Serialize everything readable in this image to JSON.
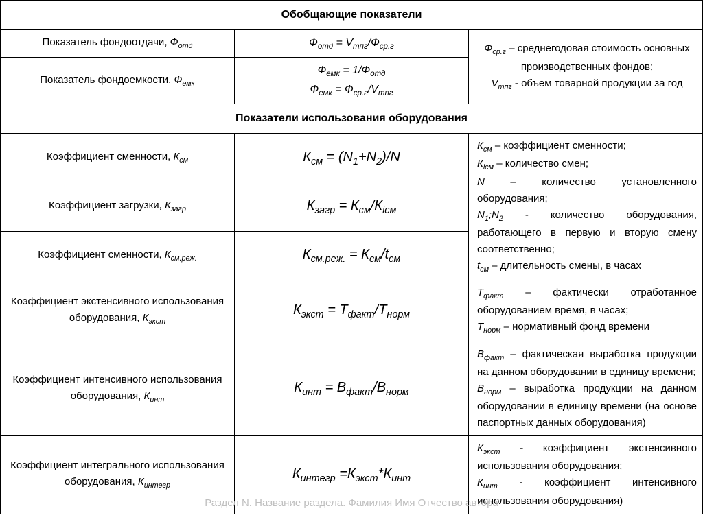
{
  "headers": {
    "h1": "Обобщающие показатели",
    "h2": "Показатели использования оборудования"
  },
  "section1": {
    "row1_name": "Показатель фондоотдачи, <span class='ital'>Ф<sub>отд</sub></span>",
    "row1_formula": "Ф<sub>отд</sub> = V<sub>тпг</sub>/Ф<sub>ср.г</sub>",
    "row2_name": "Показатель фондоемкости, <span class='ital'>Ф<sub>емк</sub></span>",
    "row2_formula": "Ф<sub>емк</sub> = 1/Ф<sub>отд</sub><br>Ф<sub>емк</sub> = Ф<sub>ср.г</sub>/V<sub>тпг</sub>",
    "desc": "<span class='ital'>Ф<sub>ср.г</sub></span> – среднегодовая стоимость основных производственных фондов;<br><span class='ital'>V<sub>тпг</sub></span> - объем товарной продукции за год"
  },
  "section2": {
    "r1_name": "Коэффициент сменности, <span class='ital'>К<sub>см</sub></span>",
    "r1_formula": "К<sub>см</sub> = (N<sub>1</sub>+N<sub>2</sub>)/N",
    "r2_name": "Коэффициент загрузки, <span class='ital'>К<sub>загр</sub></span>",
    "r2_formula": "К<sub>загр</sub> = К<sub>см</sub>/К<sub>iсм</sub>",
    "r3_name": "Коэффициент сменности, <span class='ital'>К<sub>см.реж.</sub></span>",
    "r3_formula": "К<sub>см.реж.</sub> = К<sub>см</sub>/t<sub>см</sub>",
    "desc123": "<span class='ital'>К<sub>см</sub></span> – коэффициент сменности;<br><span class='ital'>К<sub>iсм</sub></span> – количество смен;<br><span class='ital'>N</span> – количество установленного оборудования;<br><span class='ital'>N<sub>1</sub>;N<sub>2</sub></span> - количество оборудования, работающего в первую и вторую смену соответственно;<br><span class='ital'>t<sub>см</sub></span> – длительность смены, в часах",
    "r4_name": "Коэффициент экстенсивного использования оборудования, <span class='ital'>К<sub>экст</sub></span>",
    "r4_formula": "К<sub>экст</sub> = Т<sub>факт</sub>/Т<sub>норм</sub>",
    "r4_desc": "<span class='ital'>Т<sub>факт</sub></span> – фактически отработанное оборудованием время, в часах;<br><span class='ital'>Т<sub>норм</sub></span> – нормативный фонд времени",
    "r5_name": "Коэффициент интенсивного использования оборудования, <span class='ital'>К<sub>инт</sub></span>",
    "r5_formula": "К<sub>инт</sub> = В<sub>факт</sub>/В<sub>норм</sub>",
    "r5_desc": "<span class='ital'>В<sub>факт</sub></span> – фактическая выработка продукции на данном оборудовании в единицу времени;<br><span class='ital'>В<sub>норм</sub></span> – выработка продукции на данном оборудовании в единицу времени (на основе паспортных данных оборудования)",
    "r6_name": "Коэффициент интегрального использования оборудования, <span class='ital'>К<sub>интегр</sub></span>",
    "r6_formula": "К<sub>интегр</sub> =К<sub>экст</sub>*К<sub>инт</sub>",
    "r6_desc": "<span class='ital'>К<sub>экст</sub></span> - коэффициент экстенсивного использования оборудования;<br><span class='ital'>К<sub>инт</sub></span> - коэффициент интенсивного использования оборудования)"
  },
  "watermark": "Раздел N. Название раздела. Фамилия Имя Отчество автора"
}
